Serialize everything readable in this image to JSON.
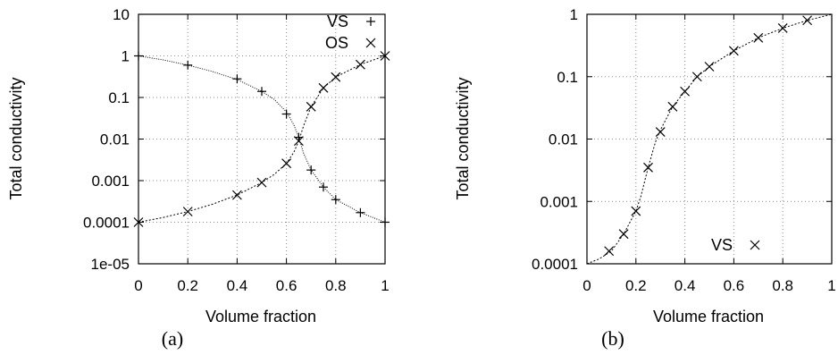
{
  "chart_data": [
    {
      "id": "a",
      "type": "scatter",
      "caption": "(a)",
      "xlabel": "Volume fraction",
      "ylabel": "Total conductivity",
      "xlim": [
        0,
        1
      ],
      "ylim": [
        1e-05,
        10
      ],
      "yscale": "log",
      "grid": true,
      "legend_position": "top-right",
      "xticks": [
        "0",
        "0.2",
        "0.4",
        "0.6",
        "0.8",
        "1"
      ],
      "yticks": [
        "1e-05",
        "0.0001",
        "0.001",
        "0.01",
        "0.1",
        "1",
        "10"
      ],
      "series": [
        {
          "name": "VS",
          "marker": "plus",
          "x": [
            0,
            0.2,
            0.4,
            0.5,
            0.6,
            0.65,
            0.7,
            0.75,
            0.8,
            0.9,
            1
          ],
          "y": [
            1,
            0.6,
            0.28,
            0.14,
            0.04,
            0.011,
            0.0018,
            0.0007,
            0.00035,
            0.00017,
            0.0001
          ],
          "curve_x": [
            0,
            0.1,
            0.2,
            0.3,
            0.4,
            0.5,
            0.55,
            0.6,
            0.63,
            0.65,
            0.67,
            0.7,
            0.75,
            0.8,
            0.9,
            1
          ],
          "curve_y": [
            1,
            0.8,
            0.6,
            0.42,
            0.27,
            0.14,
            0.09,
            0.045,
            0.022,
            0.011,
            0.0045,
            0.0018,
            0.0007,
            0.00035,
            0.00017,
            0.0001
          ]
        },
        {
          "name": "OS",
          "marker": "cross",
          "x": [
            0,
            0.2,
            0.4,
            0.5,
            0.6,
            0.65,
            0.7,
            0.75,
            0.8,
            0.9,
            1
          ],
          "y": [
            0.0001,
            0.00018,
            0.00045,
            0.0009,
            0.0026,
            0.009,
            0.06,
            0.17,
            0.31,
            0.62,
            1
          ],
          "curve_x": [
            0,
            0.1,
            0.2,
            0.3,
            0.4,
            0.5,
            0.55,
            0.6,
            0.63,
            0.65,
            0.67,
            0.7,
            0.75,
            0.8,
            0.9,
            1
          ],
          "curve_y": [
            0.0001,
            0.00013,
            0.00018,
            0.00027,
            0.00045,
            0.0009,
            0.0014,
            0.0026,
            0.0048,
            0.009,
            0.021,
            0.06,
            0.17,
            0.31,
            0.62,
            1
          ]
        }
      ]
    },
    {
      "id": "b",
      "type": "scatter",
      "caption": "(b)",
      "xlabel": "Volume fraction",
      "ylabel": "Total conductivity",
      "xlim": [
        0,
        1
      ],
      "ylim": [
        0.0001,
        1
      ],
      "yscale": "log",
      "grid": true,
      "legend_position": "bottom-right",
      "xticks": [
        "0",
        "0.2",
        "0.4",
        "0.6",
        "0.8",
        "1"
      ],
      "yticks": [
        "0.0001",
        "0.001",
        "0.01",
        "0.1",
        "1"
      ],
      "series": [
        {
          "name": "VS",
          "marker": "cross",
          "x": [
            0.09,
            0.15,
            0.2,
            0.25,
            0.3,
            0.35,
            0.4,
            0.45,
            0.5,
            0.6,
            0.7,
            0.8,
            0.9
          ],
          "y": [
            0.00016,
            0.0003,
            0.0007,
            0.0035,
            0.013,
            0.033,
            0.058,
            0.1,
            0.145,
            0.26,
            0.42,
            0.6,
            0.8
          ],
          "curve_x": [
            0,
            0.05,
            0.1,
            0.15,
            0.2,
            0.22,
            0.25,
            0.28,
            0.3,
            0.35,
            0.4,
            0.45,
            0.5,
            0.6,
            0.7,
            0.8,
            0.9,
            1
          ],
          "curve_y": [
            0.0001,
            0.00012,
            0.00016,
            0.0003,
            0.0007,
            0.0012,
            0.0035,
            0.009,
            0.014,
            0.033,
            0.058,
            0.1,
            0.145,
            0.26,
            0.42,
            0.6,
            0.8,
            1
          ]
        }
      ]
    }
  ]
}
